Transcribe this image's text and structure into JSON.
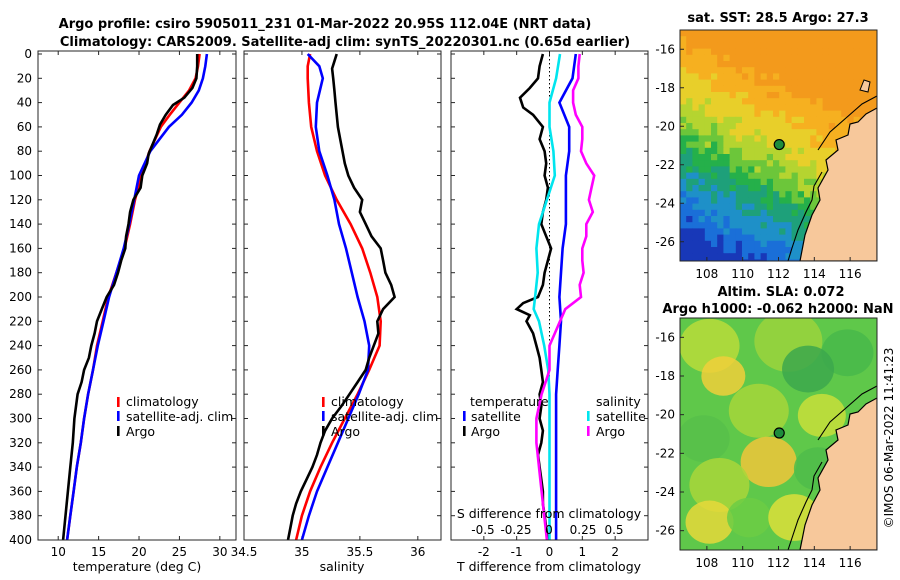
{
  "title_line1": "Argo profile: csiro 5905011_231 01-Mar-2022 20.95S 112.04E (NRT data)",
  "title_line2": "Climatology: CARS2009. Satellite-adj clim: synTS_20220301.nc (0.65d earlier)",
  "watermark": "©IMOS 06-Mar-2022 11:41:23",
  "colors": {
    "climatology": "#ff0000",
    "satellite": "#0000ff",
    "argo": "#000000",
    "cyan": "#00e5ee",
    "magenta": "#ff00ff"
  },
  "depth_axis": {
    "ticks": [
      0,
      20,
      40,
      60,
      80,
      100,
      120,
      140,
      160,
      180,
      200,
      220,
      240,
      260,
      280,
      300,
      320,
      340,
      360,
      380,
      400
    ],
    "range": [
      0,
      400
    ]
  },
  "chart_data": [
    {
      "type": "line",
      "name": "temperature-profile",
      "xlabel": "temperature (deg C)",
      "xlim": [
        7.5,
        32
      ],
      "xticks": [
        10,
        15,
        20,
        25,
        30
      ],
      "ylim": [
        400,
        0
      ],
      "legend": [
        "climatology",
        "satellite-adj. clim",
        "Argo"
      ],
      "series": [
        {
          "name": "climatology",
          "depth": [
            0,
            10,
            20,
            30,
            40,
            50,
            60,
            80,
            100,
            120,
            140,
            160,
            180,
            200,
            220,
            240,
            260,
            280,
            300,
            320,
            340,
            360,
            380,
            400
          ],
          "values": [
            27.5,
            27.3,
            27.0,
            26.2,
            25.0,
            23.8,
            22.7,
            21.3,
            20.3,
            19.5,
            18.9,
            18.2,
            17.2,
            16.2,
            15.5,
            14.8,
            14.3,
            13.7,
            13.2,
            12.8,
            12.3,
            11.9,
            11.5,
            11.1
          ]
        },
        {
          "name": "satellite-adj. clim",
          "depth": [
            0,
            10,
            20,
            30,
            40,
            50,
            60,
            80,
            100,
            120,
            140,
            160,
            180,
            200,
            220,
            240,
            260,
            280,
            300,
            320,
            340,
            360,
            380,
            400
          ],
          "values": [
            28.4,
            28.2,
            27.9,
            27.4,
            26.5,
            25.3,
            23.7,
            21.4,
            20.0,
            19.4,
            18.8,
            18.1,
            17.2,
            16.3,
            15.6,
            14.9,
            14.3,
            13.7,
            13.2,
            12.8,
            12.3,
            11.9,
            11.5,
            11.1
          ]
        },
        {
          "name": "Argo",
          "depth": [
            0,
            10,
            20,
            28,
            36,
            42,
            50,
            58,
            66,
            74,
            82,
            90,
            100,
            110,
            120,
            130,
            140,
            150,
            160,
            170,
            180,
            190,
            200,
            210,
            220,
            230,
            240,
            250,
            260,
            270,
            280,
            290,
            300,
            320,
            340,
            360,
            380,
            400
          ],
          "values": [
            27.2,
            27.2,
            27.1,
            26.6,
            25.6,
            24.2,
            23.3,
            22.6,
            22.2,
            21.7,
            21.2,
            21.0,
            20.4,
            20.2,
            19.3,
            18.9,
            18.7,
            18.4,
            18.3,
            17.8,
            17.4,
            16.9,
            16.0,
            15.4,
            14.8,
            14.5,
            14.1,
            13.8,
            13.2,
            12.9,
            12.4,
            12.2,
            12.0,
            11.8,
            11.5,
            11.2,
            10.9,
            10.6
          ]
        }
      ]
    },
    {
      "type": "line",
      "name": "salinity-profile",
      "xlabel": "salinity",
      "xlim": [
        34.5,
        36.2
      ],
      "xticks": [
        34.5,
        35,
        35.5,
        36
      ],
      "xticklabels": [
        "34.5",
        "35",
        "35.5",
        "36"
      ],
      "ylim": [
        400,
        0
      ],
      "legend": [
        "climatology",
        "satellite-adj. clim",
        "Argo"
      ],
      "series": [
        {
          "name": "climatology",
          "depth": [
            0,
            10,
            20,
            40,
            60,
            80,
            100,
            120,
            140,
            160,
            180,
            200,
            220,
            240,
            260,
            280,
            300,
            320,
            340,
            360,
            380,
            400
          ],
          "values": [
            35.07,
            35.05,
            35.05,
            35.06,
            35.08,
            35.13,
            35.2,
            35.3,
            35.42,
            35.52,
            35.59,
            35.65,
            35.68,
            35.67,
            35.58,
            35.48,
            35.37,
            35.26,
            35.16,
            35.07,
            35.0,
            34.95
          ]
        },
        {
          "name": "satellite-adj. clim",
          "depth": [
            0,
            10,
            20,
            40,
            60,
            80,
            100,
            120,
            140,
            160,
            180,
            200,
            220,
            240,
            260,
            280,
            300,
            320,
            340,
            360,
            380,
            400
          ],
          "values": [
            35.05,
            35.15,
            35.18,
            35.13,
            35.12,
            35.15,
            35.22,
            35.28,
            35.32,
            35.38,
            35.43,
            35.48,
            35.54,
            35.58,
            35.57,
            35.49,
            35.4,
            35.31,
            35.22,
            35.13,
            35.06,
            35.0
          ]
        },
        {
          "name": "Argo",
          "depth": [
            0,
            6,
            12,
            20,
            30,
            40,
            50,
            60,
            70,
            80,
            90,
            100,
            110,
            120,
            130,
            140,
            150,
            160,
            170,
            180,
            190,
            200,
            210,
            220,
            230,
            240,
            250,
            260,
            270,
            280,
            290,
            300,
            310,
            320,
            330,
            340,
            350,
            360,
            370,
            380,
            390,
            400
          ],
          "values": [
            35.3,
            35.28,
            35.26,
            35.27,
            35.28,
            35.29,
            35.3,
            35.31,
            35.33,
            35.35,
            35.37,
            35.4,
            35.45,
            35.52,
            35.5,
            35.55,
            35.6,
            35.68,
            35.7,
            35.72,
            35.77,
            35.8,
            35.7,
            35.65,
            35.66,
            35.62,
            35.58,
            35.55,
            35.48,
            35.41,
            35.34,
            35.26,
            35.2,
            35.16,
            35.13,
            35.09,
            35.04,
            34.99,
            34.95,
            34.92,
            34.9,
            34.88
          ]
        }
      ]
    },
    {
      "type": "line",
      "name": "difference-profile",
      "xlabel": "T difference from climatology",
      "xlim": [
        -3,
        3
      ],
      "xticks": [
        -2,
        -1,
        0,
        1,
        2
      ],
      "xlabel_top": "S difference from climatology",
      "xticks_top": [
        "-0.5",
        "-0.25",
        "0",
        "0.25",
        "0.5"
      ],
      "ylim": [
        400,
        0
      ],
      "legend_left_title": "temperature",
      "legend_right_title": "salinity",
      "legend_left": [
        "satellite",
        "Argo"
      ],
      "legend_right": [
        "satellite",
        "Argo"
      ],
      "series": [
        {
          "name": "temperature satellite",
          "depth": [
            0,
            20,
            40,
            60,
            80,
            100,
            120,
            140,
            160,
            180,
            200,
            220,
            240,
            260,
            280,
            300,
            320,
            340,
            360,
            380,
            400
          ],
          "values": [
            0.8,
            0.7,
            0.3,
            0.6,
            0.6,
            0.5,
            0.5,
            0.5,
            0.4,
            0.35,
            0.3,
            0.35,
            0.3,
            0.25,
            0.2,
            0.2,
            0.2,
            0.2,
            0.2,
            0.2,
            0.2
          ]
        },
        {
          "name": "temperature Argo",
          "depth": [
            0,
            10,
            20,
            28,
            36,
            44,
            50,
            60,
            70,
            80,
            90,
            100,
            110,
            120,
            130,
            140,
            150,
            160,
            170,
            180,
            190,
            200,
            205,
            210,
            215,
            220,
            230,
            240,
            250,
            260,
            270,
            280,
            290,
            300,
            310,
            320,
            330,
            340,
            350,
            360,
            370,
            380,
            390,
            400
          ],
          "values": [
            -0.2,
            -0.3,
            -0.35,
            -0.6,
            -0.9,
            -0.8,
            -0.5,
            -0.2,
            -0.3,
            -0.15,
            -0.1,
            -0.15,
            -0.05,
            -0.1,
            -0.2,
            -0.25,
            -0.1,
            0.05,
            -0.05,
            -0.15,
            -0.2,
            -0.35,
            -0.8,
            -1.0,
            -0.6,
            -0.7,
            -0.5,
            -0.4,
            -0.3,
            -0.25,
            -0.2,
            -0.3,
            -0.25,
            -0.3,
            -0.2,
            -0.25,
            -0.35,
            -0.3,
            -0.25,
            -0.2,
            -0.2,
            -0.15,
            -0.1,
            -0.05
          ]
        },
        {
          "name": "salinity satellite",
          "depth": [
            0,
            20,
            40,
            60,
            80,
            100,
            120,
            140,
            160,
            180,
            200,
            210,
            220,
            240,
            260,
            280,
            300,
            320,
            340,
            360,
            380,
            400
          ],
          "values": [
            0.08,
            0.05,
            0.0,
            0.0,
            0.03,
            0.04,
            -0.02,
            -0.08,
            -0.1,
            -0.09,
            -0.11,
            -0.12,
            -0.08,
            -0.04,
            -0.01,
            0.0,
            0.0,
            0.0,
            0.0,
            0.0,
            0.0,
            0.0
          ]
        },
        {
          "name": "salinity Argo",
          "depth": [
            0,
            10,
            20,
            30,
            40,
            50,
            60,
            70,
            80,
            90,
            100,
            110,
            120,
            130,
            140,
            150,
            160,
            170,
            180,
            190,
            200,
            210,
            220,
            230,
            240,
            250,
            260,
            270,
            280,
            290,
            300,
            310,
            320,
            330,
            340,
            350,
            360,
            370,
            380,
            390,
            400
          ],
          "values": [
            0.23,
            0.22,
            0.22,
            0.18,
            0.18,
            0.2,
            0.25,
            0.25,
            0.24,
            0.28,
            0.34,
            0.32,
            0.3,
            0.33,
            0.28,
            0.28,
            0.25,
            0.25,
            0.26,
            0.23,
            0.24,
            0.12,
            0.08,
            0.04,
            0.0,
            0.0,
            0.0,
            -0.03,
            -0.06,
            -0.08,
            -0.1,
            -0.1,
            -0.1,
            -0.09,
            -0.08,
            -0.07,
            -0.06,
            -0.05,
            -0.04,
            -0.03,
            -0.02
          ]
        }
      ]
    },
    {
      "type": "heatmap",
      "name": "sst-map",
      "title": "sat. SST: 28.5 Argo: 27.3",
      "xticks": [
        108,
        110,
        112,
        114,
        116
      ],
      "yticks": [
        "-16",
        "-18",
        "-20",
        "-22",
        "-24",
        "-26"
      ],
      "xlim": [
        106.5,
        117.5
      ],
      "ylim": [
        -27,
        -15
      ],
      "argo_position": {
        "lon": 112.04,
        "lat": -20.95
      }
    },
    {
      "type": "heatmap",
      "name": "sla-map",
      "title_line1": "Altim. SLA: 0.072",
      "title_line2": "Argo h1000: -0.062 h2000: NaN",
      "xticks": [
        108,
        110,
        112,
        114,
        116
      ],
      "yticks": [
        "-16",
        "-18",
        "-20",
        "-22",
        "-24",
        "-26"
      ],
      "xlim": [
        106.5,
        117.5
      ],
      "ylim": [
        -27,
        -15
      ],
      "argo_position": {
        "lon": 112.04,
        "lat": -20.95
      }
    }
  ]
}
